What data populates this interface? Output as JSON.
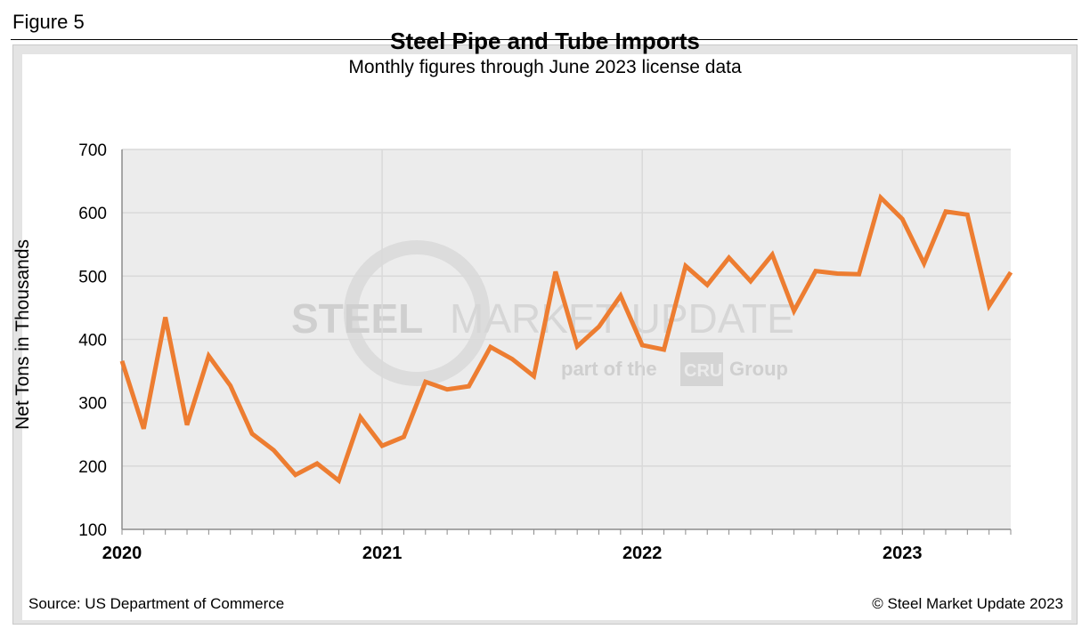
{
  "figure_label": "Figure 5",
  "source": "Source: US Department of Commerce",
  "copyright": "© Steel Market Update 2023",
  "colors": {
    "line": "#ED7D31",
    "plot_bg": "#ECECEC",
    "grid": "#D9D9D9"
  },
  "watermark": {
    "main_bold": "STEEL",
    "main_light": "MARKET UPDATE",
    "sub_left": "part of the",
    "sub_logo": "CRU",
    "sub_right": "Group"
  },
  "chart_data": {
    "type": "line",
    "title": "Steel Pipe and Tube Imports",
    "subtitle": "Monthly figures through June 2023 license data",
    "xlabel": "",
    "ylabel": "Net Tons in Thousands",
    "ylim": [
      100,
      700
    ],
    "yticks": [
      100,
      200,
      300,
      400,
      500,
      600,
      700
    ],
    "year_labels": [
      "2020",
      "2021",
      "2022",
      "2023"
    ],
    "months_per_year": 12,
    "x_start": "2020-01",
    "x_end": "2023-06",
    "grid": true,
    "series": [
      {
        "name": "Steel Pipe and Tube Imports",
        "values": [
          366,
          259,
          435,
          265,
          374,
          327,
          251,
          225,
          186,
          204,
          177,
          277,
          232,
          246,
          333,
          321,
          326,
          388,
          369,
          342,
          507,
          389,
          420,
          469,
          391,
          384,
          516,
          486,
          529,
          492,
          534,
          445,
          508,
          504,
          503,
          624,
          590,
          520,
          602,
          597,
          453,
          506
        ]
      }
    ]
  }
}
